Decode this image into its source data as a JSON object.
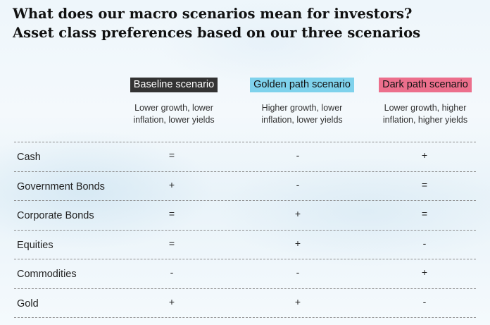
{
  "title": {
    "line1": "What does our macro scenarios mean for investors?",
    "line2": "Asset class preferences based on our three scenarios"
  },
  "scenarios": [
    {
      "label": "Baseline scenario",
      "desc_line1": "Lower growth, lower",
      "desc_line2": "inflation, lower yields",
      "color": "#333333"
    },
    {
      "label": "Golden path scenario",
      "desc_line1": "Higher growth, lower",
      "desc_line2": "inflation, lower yields",
      "color": "#7fd2ec"
    },
    {
      "label": "Dark path scenario",
      "desc_line1": "Lower growth, higher",
      "desc_line2": "inflation, higher yields",
      "color": "#ec6f8c"
    }
  ],
  "rows": [
    {
      "asset": "Cash",
      "baseline": "=",
      "golden": "-",
      "dark": "+"
    },
    {
      "asset": "Government Bonds",
      "baseline": "+",
      "golden": "-",
      "dark": "="
    },
    {
      "asset": "Corporate Bonds",
      "baseline": "=",
      "golden": "+",
      "dark": "="
    },
    {
      "asset": "Equities",
      "baseline": "=",
      "golden": "+",
      "dark": "-"
    },
    {
      "asset": "Commodities",
      "baseline": "-",
      "golden": "-",
      "dark": "+"
    },
    {
      "asset": "Gold",
      "baseline": "+",
      "golden": "+",
      "dark": "-"
    }
  ]
}
